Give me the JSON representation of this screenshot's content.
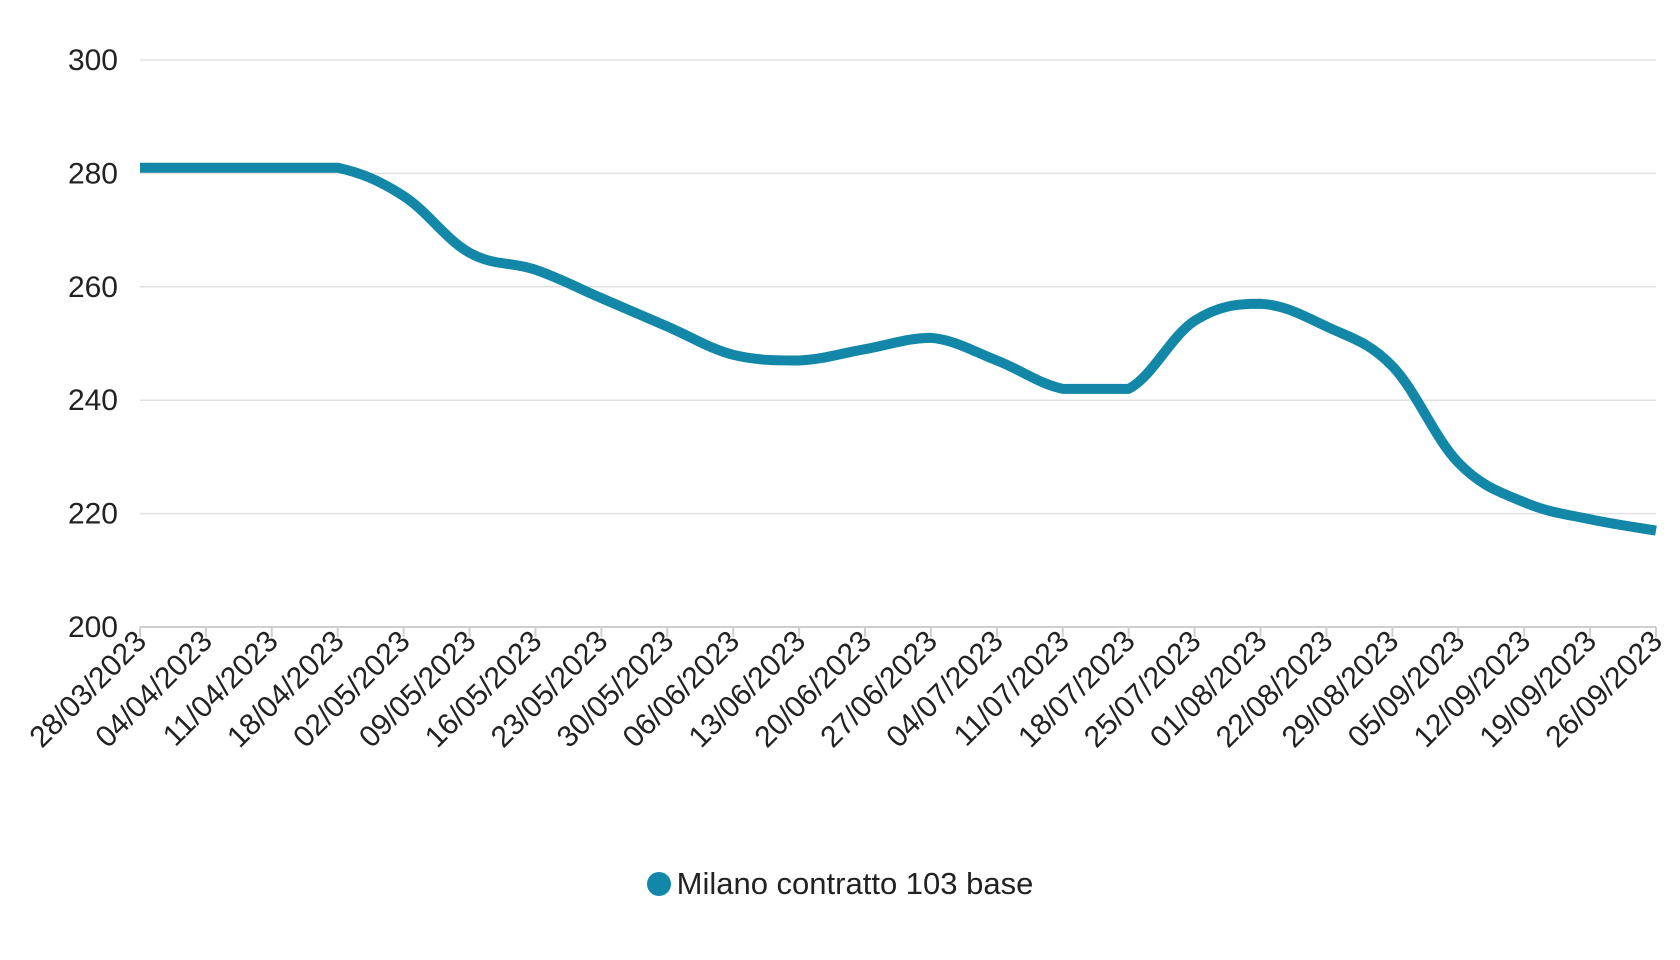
{
  "chart_data": {
    "type": "line",
    "title": "",
    "xlabel": "",
    "ylabel": "",
    "ylim": [
      200,
      300
    ],
    "yticks": [
      200,
      220,
      240,
      260,
      280,
      300
    ],
    "grid": true,
    "legend_position": "bottom-center",
    "categories": [
      "28/03/2023",
      "04/04/2023",
      "11/04/2023",
      "18/04/2023",
      "02/05/2023",
      "09/05/2023",
      "16/05/2023",
      "23/05/2023",
      "30/05/2023",
      "06/06/2023",
      "13/06/2023",
      "20/06/2023",
      "27/06/2023",
      "04/07/2023",
      "11/07/2023",
      "18/07/2023",
      "25/07/2023",
      "01/08/2023",
      "22/08/2023",
      "29/08/2023",
      "05/09/2023",
      "12/09/2023",
      "19/09/2023",
      "26/09/2023"
    ],
    "series": [
      {
        "name": "Milano contratto 103 base",
        "color": "#1287a8",
        "values": [
          281,
          281,
          281,
          281,
          276,
          266,
          263,
          258,
          253,
          248,
          247,
          249,
          251,
          247,
          242,
          242,
          254,
          257,
          253,
          246,
          229,
          222,
          219,
          217
        ]
      }
    ]
  }
}
